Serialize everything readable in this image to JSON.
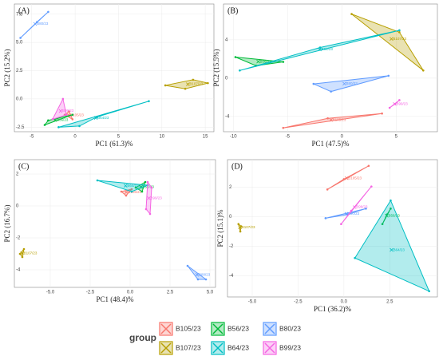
{
  "chart_data": [
    {
      "type": "scatter",
      "hulls": true,
      "grid": true,
      "title": "(A)",
      "xlabel": "PC1 (61.3)%",
      "ylabel": "PC2 (15.2%)",
      "xlim": [
        -7,
        16
      ],
      "ylim": [
        -2.9,
        8.4
      ],
      "xticks": [
        -5,
        0,
        5,
        10,
        15
      ],
      "yticks": [
        -2.5,
        {
          "value": 0,
          "label": "0.0"
        },
        2.5,
        {
          "value": 5,
          "label": "5.0"
        },
        7.5
      ],
      "series": [
        {
          "name": "B105/23",
          "color": "#F8766D",
          "x": [
            -0.7,
            -0.3,
            -1.2
          ],
          "y": [
            -1.1,
            -1.8,
            -1.4
          ]
        },
        {
          "name": "B107/23",
          "color": "#B79F00",
          "x": [
            10.4,
            13.6,
            15.3,
            12.7
          ],
          "y": [
            1.2,
            1.7,
            1.4,
            0.9
          ]
        },
        {
          "name": "B56/23",
          "color": "#00BA38",
          "x": [
            -3.5,
            -0.3,
            -3.1
          ],
          "y": [
            -2.3,
            -1.4,
            -1.9
          ]
        },
        {
          "name": "B64/23",
          "color": "#00BFC4",
          "x": [
            8.5,
            -1.9,
            0.5,
            2.5
          ],
          "y": [
            -0.2,
            -2.5,
            -2.4,
            -1.6
          ]
        },
        {
          "name": "B80/23",
          "color": "#619CFF",
          "x": [
            -6.3,
            -3.1,
            -4.4
          ],
          "y": [
            5.4,
            7.7,
            6.8
          ]
        },
        {
          "name": "B99/23",
          "color": "#F564E3",
          "x": [
            -2.6,
            -1.4,
            -1.0
          ],
          "y": [
            -1.8,
            0,
            -1.4
          ]
        }
      ]
    },
    {
      "type": "scatter",
      "hulls": true,
      "grid": true,
      "title": "(B)",
      "xlabel": "PC1 (47.5)%",
      "ylabel": "PC2 (15.5%)",
      "xlim": [
        -10.9,
        8.8
      ],
      "ylim": [
        -5.6,
        7.75
      ],
      "xticks": [
        -10,
        -5,
        0,
        5
      ],
      "yticks": [
        -4,
        0,
        4
      ],
      "series": [
        {
          "name": "B105/23",
          "color": "#F8766D",
          "x": [
            -5.4,
            3.7,
            -1.3
          ],
          "y": [
            -5.2,
            -3.7,
            -4.2
          ]
        },
        {
          "name": "B107/23",
          "color": "#B79F00",
          "x": [
            0.9,
            7.5,
            5.3
          ],
          "y": [
            6.7,
            0.8,
            4.8
          ]
        },
        {
          "name": "B56/23",
          "color": "#00BA38",
          "x": [
            -9.8,
            -5.4,
            -7.9
          ],
          "y": [
            2.2,
            1.7,
            1.3
          ]
        },
        {
          "name": "B64/23",
          "color": "#00BFC4",
          "x": [
            -9.4,
            5.3,
            -2.0
          ],
          "y": [
            0.8,
            5,
            3.2
          ]
        },
        {
          "name": "B80/23",
          "color": "#619CFF",
          "x": [
            -2.6,
            4.3,
            -1.0
          ],
          "y": [
            -0.6,
            0.25,
            -1.4
          ]
        },
        {
          "name": "B99/23",
          "color": "#F564E3",
          "x": [
            4.4,
            5.3,
            4.9
          ],
          "y": [
            -3.1,
            -2.3,
            -2.7
          ]
        }
      ]
    },
    {
      "type": "scatter",
      "hulls": true,
      "grid": true,
      "title": "(C)",
      "xlabel": "PC1 (48.4)%",
      "ylabel": "PC2 (16.7%)",
      "xlim": [
        -7.25,
        5.35
      ],
      "ylim": [
        -5.1,
        2.9
      ],
      "xticks": [
        {
          "value": -5,
          "label": "-5.0"
        },
        -2.5,
        {
          "value": 0,
          "label": "0.0"
        },
        2.5,
        {
          "value": 5,
          "label": "5.0"
        }
      ],
      "yticks": [
        -4,
        -2,
        0,
        2
      ],
      "series": [
        {
          "name": "B105/23",
          "color": "#F8766D",
          "x": [
            -0.55,
            0.1,
            -0.25
          ],
          "y": [
            0.9,
            1.05,
            0.65
          ]
        },
        {
          "name": "B107/23",
          "color": "#B79F00",
          "x": [
            -6.9,
            -6.65,
            -6.75
          ],
          "y": [
            -3.0,
            -2.7,
            -3.2
          ]
        },
        {
          "name": "B56/23",
          "color": "#00BA38",
          "x": [
            0.35,
            0.95,
            0.75
          ],
          "y": [
            1.15,
            1.5,
            0.9
          ]
        },
        {
          "name": "B64/23",
          "color": "#00BFC4",
          "x": [
            -2.05,
            1.1,
            0.1
          ],
          "y": [
            1.6,
            1.3,
            0.9
          ]
        },
        {
          "name": "B80/23",
          "color": "#619CFF",
          "x": [
            3.6,
            4.75,
            4.25
          ],
          "y": [
            -3.75,
            -4.6,
            -4.6
          ]
        },
        {
          "name": "B99/23",
          "color": "#F564E3",
          "x": [
            1.1,
            1.35,
            1.25,
            1.0
          ],
          "y": [
            1.5,
            1.15,
            -0.5,
            -0.2
          ]
        }
      ]
    },
    {
      "type": "scatter",
      "hulls": true,
      "grid": true,
      "title": "(D)",
      "xlabel": "PC1 (36.2)%",
      "ylabel": "PC2 (15.1)%",
      "xlim": [
        -6.35,
        5.1
      ],
      "ylim": [
        -5.44,
        3.87
      ],
      "xticks": [
        {
          "value": -5,
          "label": "-5.0"
        },
        -2.5,
        {
          "value": 0,
          "label": "0.0"
        },
        2.5
      ],
      "yticks": [
        -4,
        -2,
        0,
        2
      ],
      "series": [
        {
          "name": "B105/23",
          "color": "#F8766D",
          "x": [
            -0.9,
            1.35,
            0
          ],
          "y": [
            1.85,
            3.45,
            2.55
          ]
        },
        {
          "name": "B107/23",
          "color": "#B79F00",
          "x": [
            -5.75,
            -5.65,
            -5.6
          ],
          "y": [
            -0.5,
            -1.0,
            -0.65
          ]
        },
        {
          "name": "B56/23",
          "color": "#00BA38",
          "x": [
            2.1,
            2.55,
            2.35
          ],
          "y": [
            -0.5,
            0.55,
            0.15
          ]
        },
        {
          "name": "B64/23",
          "color": "#00BFC4",
          "x": [
            0.6,
            2.55,
            4.65
          ],
          "y": [
            -2.8,
            1.1,
            -5.05
          ]
        },
        {
          "name": "B80/23",
          "color": "#619CFF",
          "x": [
            -1.0,
            1.2,
            0.2
          ],
          "y": [
            -0.1,
            0.55,
            0.15
          ]
        },
        {
          "name": "B99/23",
          "color": "#F564E3",
          "x": [
            -0.15,
            1.5,
            0.4
          ],
          "y": [
            -0.5,
            2.05,
            0.4
          ]
        }
      ]
    }
  ],
  "legend": {
    "title": "group"
  }
}
